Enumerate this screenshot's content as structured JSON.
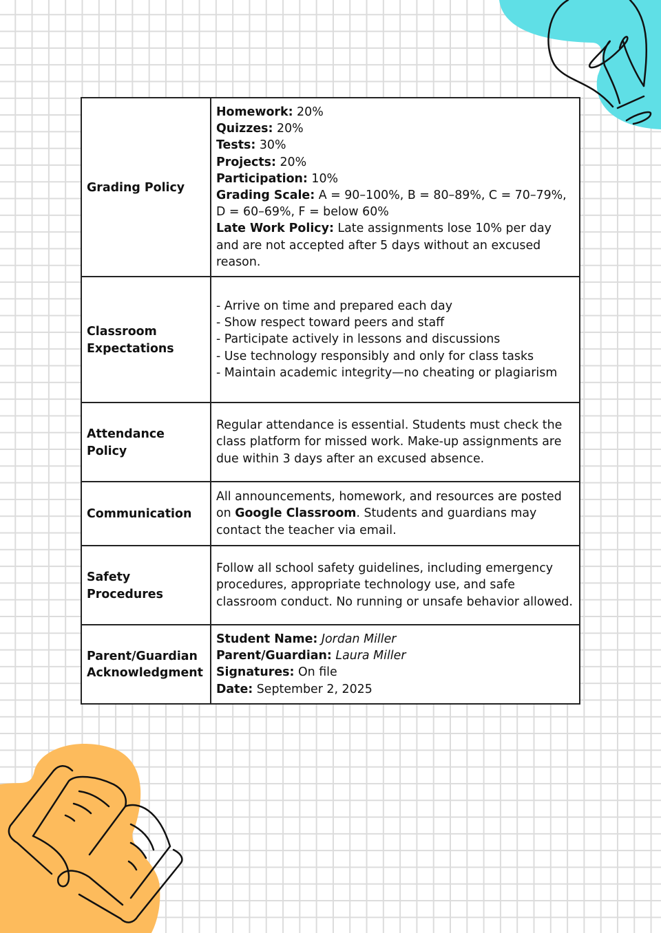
{
  "colors": {
    "bulb_blob": "#5fdfe6",
    "book_blob": "#fdbb5c",
    "grid": "#dcdcdc"
  },
  "icons": {
    "top_right": "lightbulb-icon",
    "bottom_left": "open-book-icon"
  },
  "rows": [
    {
      "label": "Grading Policy",
      "items": [
        {
          "k": "Homework:",
          "v": " 20%"
        },
        {
          "k": "Quizzes:",
          "v": " 20%"
        },
        {
          "k": "Tests:",
          "v": " 30%"
        },
        {
          "k": "Projects:",
          "v": " 20%"
        },
        {
          "k": "Participation:",
          "v": " 10%"
        },
        {
          "k": "Grading Scale:",
          "v": " A = 90–100%, B = 80–89%, C = 70–79%, D = 60–69%, F = below 60%"
        },
        {
          "k": "Late Work Policy:",
          "v": " Late assignments lose 10% per day and are not accepted after 5 days without an excused reason."
        }
      ]
    },
    {
      "label": "Classroom Expectations",
      "lines": [
        "- Arrive on time and prepared each day",
        "- Show respect toward peers and staff",
        "- Participate actively in lessons and discussions",
        "- Use technology responsibly and only for class tasks",
        "- Maintain academic integrity—no cheating or plagiarism"
      ]
    },
    {
      "label": "Attendance Policy",
      "text": "Regular attendance is essential. Students must check the class platform for missed work. Make-up assignments are due within 3 days after an excused absence."
    },
    {
      "label": "Communication",
      "pre": "All announcements, homework, and resources are posted on ",
      "bold": "Google Classroom",
      "post": ". Students and guardians may contact the teacher via email."
    },
    {
      "label": "Safety Procedures",
      "text": "Follow all school safety guidelines, including emergency procedures, appropriate technology use, and safe classroom conduct. No running or unsafe behavior allowed."
    },
    {
      "label": "Parent/Guardian Acknowledgment",
      "items": [
        {
          "k": "Student Name:",
          "v": " Jordan Miller",
          "italic": true
        },
        {
          "k": "Parent/Guardian:",
          "v": " Laura Miller",
          "italic": true
        },
        {
          "k": "Signatures:",
          "v": " On file"
        },
        {
          "k": "Date:",
          "v": " September 2, 2025"
        }
      ]
    }
  ]
}
